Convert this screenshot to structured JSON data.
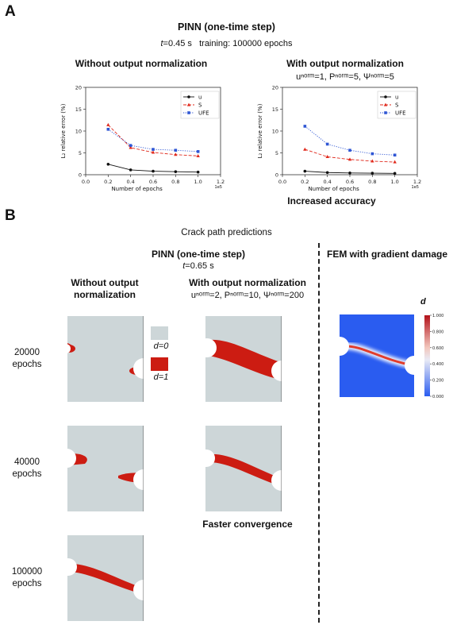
{
  "panelA": {
    "letter": "A",
    "title": "PINN (one-time step)",
    "t_label": "t",
    "t_value": "=0.45 s",
    "training": "training: 100000 epochs",
    "left_heading": "Without output normalization",
    "right_heading": "With output normalization",
    "right_norm": "uⁿᵒʳᵐ=1, Pⁿᵒʳᵐ=5, Ψⁿᵒʳᵐ=5",
    "right_footer": "Increased accuracy"
  },
  "chart_data": [
    {
      "type": "line",
      "title": "Without output normalization",
      "xlabel": "Number of epochs",
      "ylabel": "L₂ relative error (%)",
      "x_multiplier": "1e5",
      "xlim": [
        0.0,
        1.2
      ],
      "ylim": [
        0,
        20
      ],
      "xticks": [
        "0.0",
        "0.2",
        "0.4",
        "0.6",
        "0.8",
        "1.0",
        "1.2"
      ],
      "yticks": [
        "0",
        "5",
        "10",
        "15",
        "20"
      ],
      "legend_position": "top-right",
      "x": [
        0.2,
        0.4,
        0.6,
        0.8,
        1.0
      ],
      "series": [
        {
          "name": "u",
          "color": "#111111",
          "style": "solid",
          "marker": "circle",
          "values": [
            2.4,
            1.1,
            0.8,
            0.7,
            0.6
          ]
        },
        {
          "name": "S",
          "color": "#e0281b",
          "style": "dashed",
          "marker": "triangle",
          "values": [
            11.4,
            6.2,
            5.1,
            4.6,
            4.3
          ]
        },
        {
          "name": "UFE",
          "color": "#2f56d4",
          "style": "dotted",
          "marker": "square",
          "values": [
            10.4,
            6.7,
            5.8,
            5.6,
            5.3
          ]
        }
      ]
    },
    {
      "type": "line",
      "title": "With output normalization",
      "xlabel": "Number of epochs",
      "ylabel": "L₂ relative error (%)",
      "x_multiplier": "1e5",
      "xlim": [
        0.0,
        1.2
      ],
      "ylim": [
        0,
        20
      ],
      "xticks": [
        "0.0",
        "0.2",
        "0.4",
        "0.6",
        "0.8",
        "1.0",
        "1.2"
      ],
      "yticks": [
        "0",
        "5",
        "10",
        "15",
        "20"
      ],
      "legend_position": "top-right",
      "x": [
        0.2,
        0.4,
        0.6,
        0.8,
        1.0
      ],
      "series": [
        {
          "name": "u",
          "color": "#111111",
          "style": "solid",
          "marker": "circle",
          "values": [
            0.8,
            0.5,
            0.4,
            0.35,
            0.3
          ]
        },
        {
          "name": "S",
          "color": "#e0281b",
          "style": "dashed",
          "marker": "triangle",
          "values": [
            5.8,
            4.1,
            3.5,
            3.1,
            2.9
          ]
        },
        {
          "name": "UFE",
          "color": "#2f56d4",
          "style": "dotted",
          "marker": "square",
          "values": [
            11.1,
            7.0,
            5.6,
            4.8,
            4.5
          ]
        }
      ]
    }
  ],
  "panelB": {
    "letter": "B",
    "title": "Crack path predictions",
    "pinn_title": "PINN (one-time step)",
    "t_label": "t",
    "t_value": "=0.65 s",
    "left_heading_1": "Without output",
    "left_heading_2": "normalization",
    "mid_heading": "With output normalization",
    "mid_norm": "uⁿᵒʳᵐ=2, Pⁿᵒʳᵐ=10, Ψⁿᵒʳᵐ=200",
    "fem_heading": "FEM with gradient damage",
    "faster": "Faster convergence",
    "legend_d0": "d=0",
    "legend_d1": "d=1",
    "colorbar_label": "d",
    "colorbar_ticks": [
      "1.000",
      "0.800",
      "0.600",
      "0.400",
      "0.200",
      "0.000"
    ],
    "rows": [
      {
        "line1": "20000",
        "line2": "epochs"
      },
      {
        "line1": "40000",
        "line2": "epochs"
      },
      {
        "line1": "100000",
        "line2": "epochs"
      }
    ],
    "colors": {
      "background": "#cdd6d8",
      "crack": "#cc1c12",
      "fem_field": "#2a5cf0"
    }
  }
}
